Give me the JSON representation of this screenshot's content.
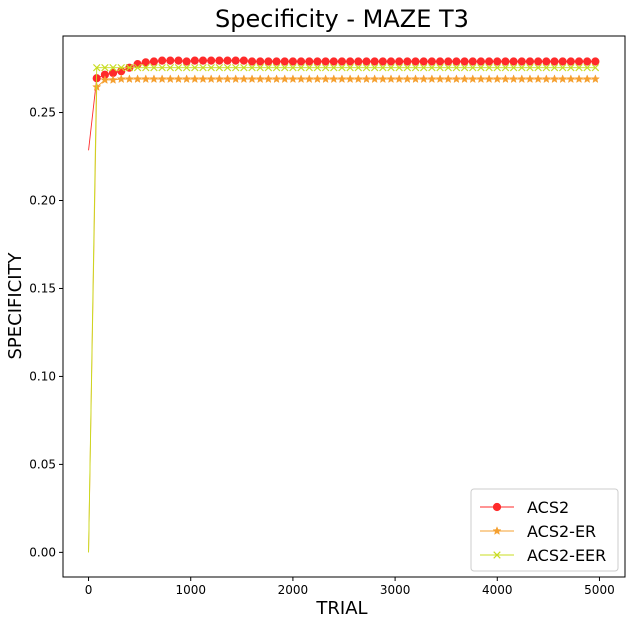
{
  "chart_data": {
    "type": "line",
    "title": "Specificity - MAZE T3",
    "xlabel": "TRIAL",
    "ylabel": "SPECIFICITY",
    "xlim": [
      -250,
      5250
    ],
    "ylim": [
      -0.014,
      0.2935
    ],
    "xticks": [
      0,
      1000,
      2000,
      3000,
      4000,
      5000
    ],
    "xtick_labels": [
      "0",
      "1000",
      "2000",
      "3000",
      "4000",
      "5000"
    ],
    "yticks": [
      0.0,
      0.05,
      0.1,
      0.15,
      0.2,
      0.25
    ],
    "ytick_labels": [
      "0.00",
      "0.05",
      "0.10",
      "0.15",
      "0.20",
      "0.25"
    ],
    "grid": false,
    "legend_position": "lower-right",
    "series": [
      {
        "name": "ACS2",
        "color": "#ff2a2a",
        "marker": "circle",
        "x": [
          0,
          80,
          160,
          240,
          320,
          400,
          480,
          560,
          640,
          720,
          800,
          880,
          960,
          1040,
          1120,
          1200,
          1280,
          1360,
          1440,
          1520,
          1600,
          1680,
          1760,
          1840,
          1920,
          2000,
          2080,
          2160,
          2240,
          2320,
          2400,
          2480,
          2560,
          2640,
          2720,
          2800,
          2880,
          2960,
          3040,
          3120,
          3200,
          3280,
          3360,
          3440,
          3520,
          3600,
          3680,
          3760,
          3840,
          3920,
          4000,
          4080,
          4160,
          4240,
          4320,
          4400,
          4480,
          4560,
          4640,
          4720,
          4800,
          4880,
          4960
        ],
        "y": [
          0.2285,
          0.2695,
          0.2715,
          0.2725,
          0.2735,
          0.2755,
          0.2775,
          0.2785,
          0.279,
          0.2795,
          0.2795,
          0.2795,
          0.279,
          0.2795,
          0.2795,
          0.2795,
          0.2795,
          0.2795,
          0.2795,
          0.2795,
          0.279,
          0.279,
          0.279,
          0.279,
          0.279,
          0.279,
          0.279,
          0.279,
          0.279,
          0.279,
          0.279,
          0.279,
          0.279,
          0.279,
          0.279,
          0.279,
          0.279,
          0.279,
          0.279,
          0.279,
          0.279,
          0.279,
          0.279,
          0.279,
          0.279,
          0.279,
          0.279,
          0.279,
          0.279,
          0.279,
          0.279,
          0.279,
          0.279,
          0.279,
          0.279,
          0.279,
          0.279,
          0.279,
          0.279,
          0.279,
          0.279,
          0.279,
          0.279
        ]
      },
      {
        "name": "ACS2-ER",
        "color": "#f5a030",
        "marker": "star",
        "x": [
          0,
          80,
          160,
          240,
          320,
          400,
          480,
          560,
          640,
          720,
          800,
          880,
          960,
          1040,
          1120,
          1200,
          1280,
          1360,
          1440,
          1520,
          1600,
          1680,
          1760,
          1840,
          1920,
          2000,
          2080,
          2160,
          2240,
          2320,
          2400,
          2480,
          2560,
          2640,
          2720,
          2800,
          2880,
          2960,
          3040,
          3120,
          3200,
          3280,
          3360,
          3440,
          3520,
          3600,
          3680,
          3760,
          3840,
          3920,
          4000,
          4080,
          4160,
          4240,
          4320,
          4400,
          4480,
          4560,
          4640,
          4720,
          4800,
          4880,
          4960
        ],
        "y": [
          0.0,
          0.2645,
          0.2685,
          0.2685,
          0.269,
          0.269,
          0.269,
          0.269,
          0.269,
          0.269,
          0.269,
          0.269,
          0.269,
          0.269,
          0.269,
          0.269,
          0.269,
          0.269,
          0.269,
          0.269,
          0.269,
          0.269,
          0.269,
          0.269,
          0.269,
          0.269,
          0.269,
          0.269,
          0.269,
          0.269,
          0.269,
          0.269,
          0.269,
          0.269,
          0.269,
          0.269,
          0.269,
          0.269,
          0.269,
          0.269,
          0.269,
          0.269,
          0.269,
          0.269,
          0.269,
          0.269,
          0.269,
          0.269,
          0.269,
          0.269,
          0.269,
          0.269,
          0.269,
          0.269,
          0.269,
          0.269,
          0.269,
          0.269,
          0.269,
          0.269,
          0.269,
          0.269,
          0.269
        ]
      },
      {
        "name": "ACS2-EER",
        "color": "#c8dc20",
        "marker": "x",
        "x": [
          0,
          80,
          160,
          240,
          320,
          400,
          480,
          560,
          640,
          720,
          800,
          880,
          960,
          1040,
          1120,
          1200,
          1280,
          1360,
          1440,
          1520,
          1600,
          1680,
          1760,
          1840,
          1920,
          2000,
          2080,
          2160,
          2240,
          2320,
          2400,
          2480,
          2560,
          2640,
          2720,
          2800,
          2880,
          2960,
          3040,
          3120,
          3200,
          3280,
          3360,
          3440,
          3520,
          3600,
          3680,
          3760,
          3840,
          3920,
          4000,
          4080,
          4160,
          4240,
          4320,
          4400,
          4480,
          4560,
          4640,
          4720,
          4800,
          4880,
          4960
        ],
        "y": [
          0.0,
          0.2755,
          0.2755,
          0.2755,
          0.2755,
          0.2755,
          0.2755,
          0.2755,
          0.2755,
          0.2755,
          0.2755,
          0.2755,
          0.2755,
          0.2755,
          0.2755,
          0.2755,
          0.2755,
          0.2755,
          0.2755,
          0.2755,
          0.2755,
          0.2755,
          0.2755,
          0.2755,
          0.2755,
          0.2755,
          0.2755,
          0.2755,
          0.2755,
          0.2755,
          0.2755,
          0.2755,
          0.2755,
          0.2755,
          0.2755,
          0.2755,
          0.2755,
          0.2755,
          0.2755,
          0.2755,
          0.2755,
          0.2755,
          0.2755,
          0.2755,
          0.2755,
          0.2755,
          0.2755,
          0.2755,
          0.2755,
          0.2755,
          0.2755,
          0.2755,
          0.2755,
          0.2755,
          0.2755,
          0.2755,
          0.2755,
          0.2755,
          0.2755,
          0.2755,
          0.2755,
          0.2755,
          0.2755
        ]
      }
    ]
  }
}
